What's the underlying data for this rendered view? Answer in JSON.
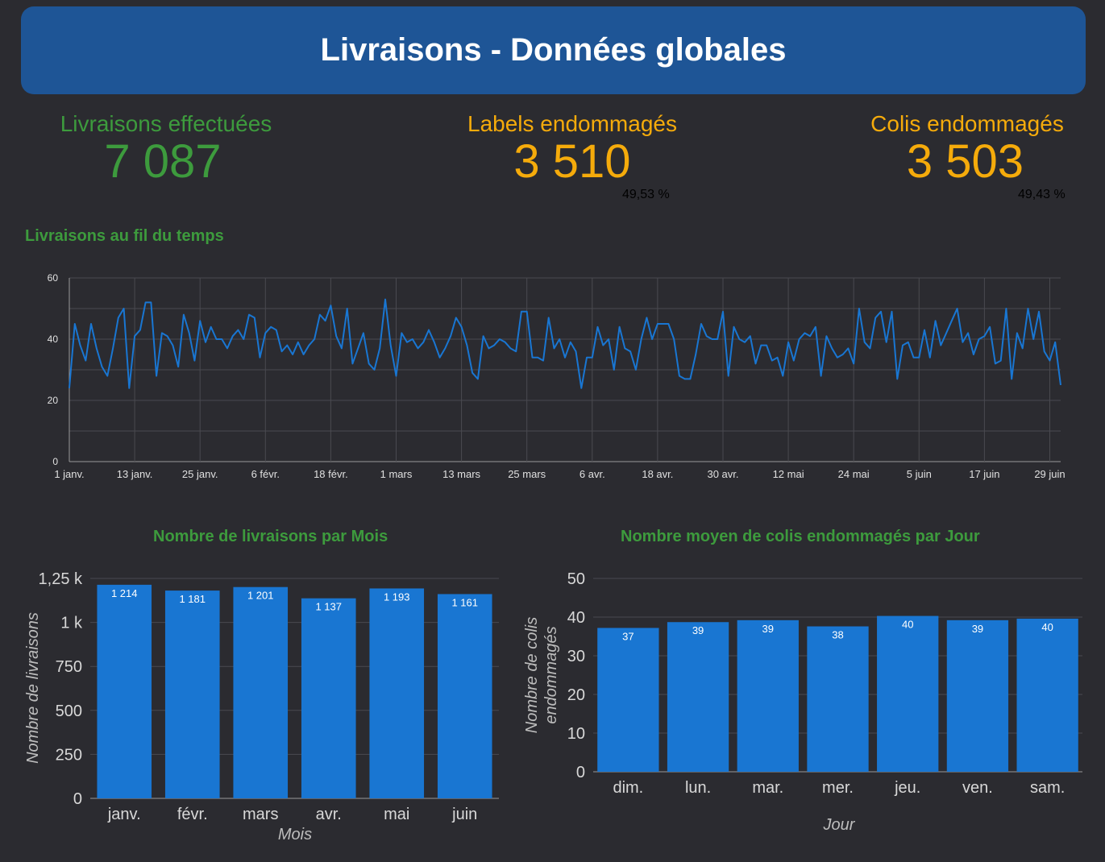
{
  "header": {
    "title": "Livraisons - Données globales"
  },
  "kpis": {
    "livraisons": {
      "label": "Livraisons effectuées",
      "value": "7 087"
    },
    "labels": {
      "label": "Labels endommagés",
      "value": "3 510",
      "pct": "49,53 %"
    },
    "colis": {
      "label": "Colis endommagés",
      "value": "3 503",
      "pct": "49,43 %"
    }
  },
  "colors": {
    "banner": "#1e5596",
    "green": "#3d9b3d",
    "orange": "#f5ab0b",
    "red": "#c62828",
    "series": "#1976d2",
    "background": "#2b2b30"
  },
  "chart_data": [
    {
      "type": "line",
      "title": "Livraisons au fil du temps",
      "x_tick_labels": [
        "1 janv.",
        "13 janv.",
        "25 janv.",
        "6 févr.",
        "18 févr.",
        "1 mars",
        "13 mars",
        "25 mars",
        "6 avr.",
        "18 avr.",
        "30 avr.",
        "12 mai",
        "24 mai",
        "5 juin",
        "17 juin",
        "29 juin"
      ],
      "y_ticks": [
        "0",
        "20",
        "40",
        "60"
      ],
      "ylim": [
        0,
        60
      ],
      "grid": true,
      "x_start": "2023-01-01",
      "x_end": "2023-06-30",
      "series": [
        {
          "values": [
            24,
            45,
            38,
            33,
            45,
            37,
            31,
            28,
            37,
            47,
            50,
            24,
            41,
            43,
            52,
            52,
            28,
            42,
            41,
            38,
            31,
            48,
            42,
            33,
            46,
            39,
            44,
            40,
            40,
            37,
            41,
            43,
            40,
            48,
            47,
            34,
            42,
            44,
            43,
            36,
            38,
            35,
            39,
            35,
            38,
            40,
            48,
            46,
            51,
            41,
            37,
            50,
            32,
            37,
            42,
            32,
            30,
            37,
            53,
            38,
            28,
            42,
            39,
            40,
            37,
            39,
            43,
            39,
            34,
            37,
            41,
            47,
            44,
            38,
            29,
            27,
            41,
            37,
            38,
            40,
            39,
            37,
            36,
            49,
            49,
            34,
            34,
            33,
            47,
            37,
            40,
            34,
            39,
            36,
            24,
            34,
            34,
            44,
            38,
            40,
            30,
            44,
            37,
            36,
            30,
            40,
            47,
            40,
            45,
            45,
            45,
            40,
            28,
            27,
            27,
            35,
            45,
            41,
            40,
            40,
            49,
            28,
            44,
            40,
            39,
            41,
            32,
            38,
            38,
            33,
            34,
            28,
            39,
            33,
            40,
            42,
            41,
            44,
            28,
            41,
            37,
            34,
            35,
            37,
            32,
            50,
            39,
            37,
            47,
            49,
            39,
            49,
            27,
            38,
            39,
            34,
            34,
            43,
            34,
            46,
            38,
            42,
            46,
            50,
            39,
            42,
            35,
            40,
            41,
            44,
            32,
            33,
            50,
            27,
            42,
            37,
            50,
            40,
            49,
            36,
            33,
            39,
            25
          ]
        }
      ]
    },
    {
      "type": "bar",
      "title": "Nombre de livraisons par Mois",
      "categories": [
        "janv.",
        "févr.",
        "mars",
        "avr.",
        "mai",
        "juin"
      ],
      "values": [
        1214,
        1181,
        1201,
        1137,
        1193,
        1161
      ],
      "value_labels": [
        "1 214",
        "1 181",
        "1 201",
        "1 137",
        "1 193",
        "1 161"
      ],
      "xlabel": "Mois",
      "ylabel": "Nombre de livraisons",
      "y_ticks": [
        0,
        250,
        500,
        750,
        1000,
        1250
      ],
      "y_tick_labels": [
        "0",
        "250",
        "500",
        "750",
        "1 k",
        "1,25 k"
      ],
      "ylim": [
        0,
        1250
      ],
      "grid": true
    },
    {
      "type": "bar",
      "title": "Nombre moyen de colis endommagés par Jour",
      "categories": [
        "dim.",
        "lun.",
        "mar.",
        "mer.",
        "jeu.",
        "ven.",
        "sam."
      ],
      "values": [
        37.2,
        38.7,
        39.2,
        37.6,
        40.3,
        39.2,
        39.6
      ],
      "value_labels": [
        "37",
        "39",
        "39",
        "38",
        "40",
        "39",
        "40"
      ],
      "xlabel": "Jour",
      "ylabel": "Nombre de colis endommagés",
      "y_ticks": [
        0,
        10,
        20,
        30,
        40,
        50
      ],
      "y_tick_labels": [
        "0",
        "10",
        "20",
        "30",
        "40",
        "50"
      ],
      "ylim": [
        0,
        50
      ],
      "grid": true
    }
  ]
}
